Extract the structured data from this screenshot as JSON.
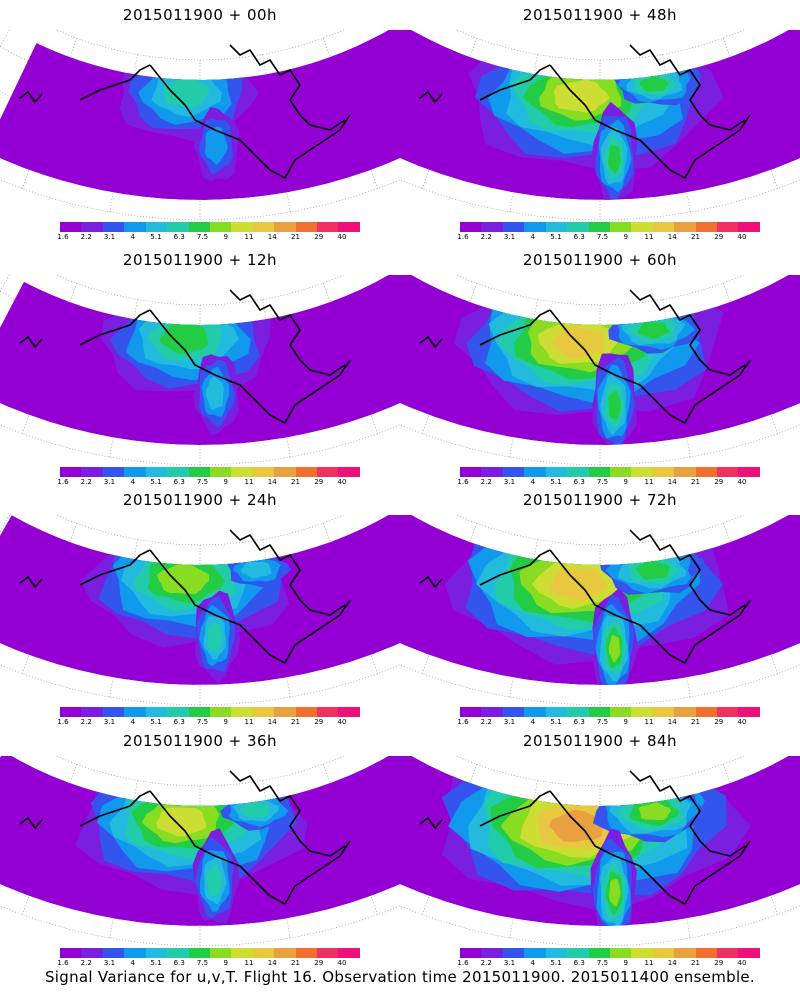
{
  "footer_caption": "Signal Variance for u,v,T. Flight 16. Observation time 2015011900. 2015011400 ensemble.",
  "colorbar": {
    "labels": [
      "1.6",
      "2.2",
      "3.1",
      "4",
      "5.1",
      "6.3",
      "7.5",
      "9",
      "11",
      "14",
      "21",
      "29",
      "40"
    ],
    "colors": [
      "#9400d3",
      "#7a1fe0",
      "#3355ee",
      "#1199ee",
      "#22bbdd",
      "#22ccaa",
      "#22cc44",
      "#88dd22",
      "#ccdd33",
      "#e8c840",
      "#e8a040",
      "#f07030",
      "#f03060",
      "#f0107a"
    ]
  },
  "panels": [
    {
      "title": "2015011900 + 00h",
      "spread": 0.25
    },
    {
      "title": "2015011900 + 12h",
      "spread": 0.4
    },
    {
      "title": "2015011900 + 24h",
      "spread": 0.55
    },
    {
      "title": "2015011900 + 36h",
      "spread": 0.65
    },
    {
      "title": "2015011900 + 48h",
      "spread": 0.75
    },
    {
      "title": "2015011900 + 60h",
      "spread": 0.82
    },
    {
      "title": "2015011900 + 72h",
      "spread": 0.9
    },
    {
      "title": "2015011900 + 84h",
      "spread": 1.0
    }
  ]
}
